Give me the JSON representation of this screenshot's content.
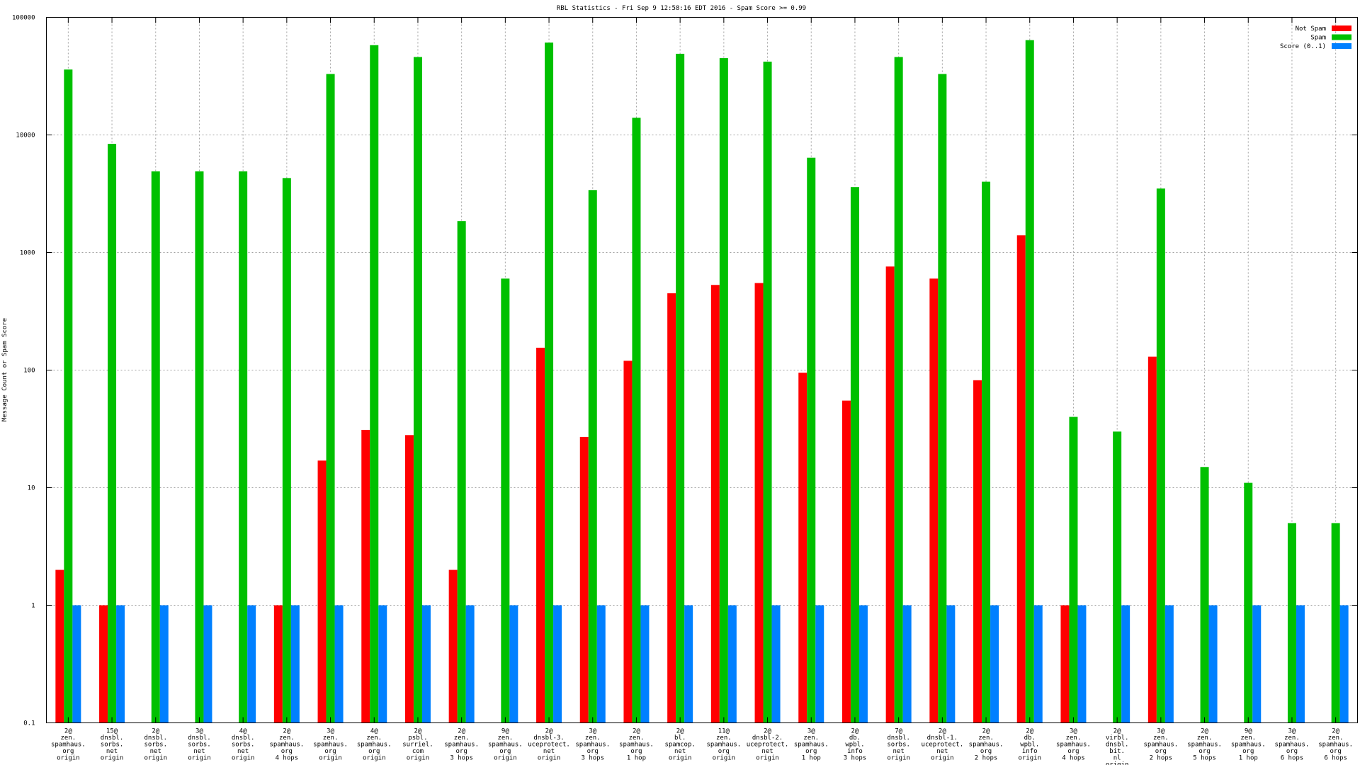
{
  "chart_data": {
    "type": "bar",
    "title": "RBL Statistics - Fri Sep  9 12:58:16 EDT 2016 - Spam Score >= 0.99",
    "ylabel": "Message Count or Spam Score",
    "xlabel": "",
    "yscale": "log",
    "ylim": [
      0.1,
      100000
    ],
    "yticks": [
      "0.1",
      "1",
      "10",
      "100",
      "1000",
      "10000",
      "100000"
    ],
    "grid": true,
    "legend_position": "top-right",
    "categories": [
      [
        "2@",
        "zen.",
        "spamhaus.",
        "org",
        "origin"
      ],
      [
        "15@",
        "dnsbl.",
        "sorbs.",
        "net",
        "origin"
      ],
      [
        "2@",
        "dnsbl.",
        "sorbs.",
        "net",
        "origin"
      ],
      [
        "3@",
        "dnsbl.",
        "sorbs.",
        "net",
        "origin"
      ],
      [
        "4@",
        "dnsbl.",
        "sorbs.",
        "net",
        "origin"
      ],
      [
        "2@",
        "zen.",
        "spamhaus.",
        "org",
        "4 hops"
      ],
      [
        "3@",
        "zen.",
        "spamhaus.",
        "org",
        "origin"
      ],
      [
        "4@",
        "zen.",
        "spamhaus.",
        "org",
        "origin"
      ],
      [
        "2@",
        "psbl.",
        "surriel.",
        "com",
        "origin"
      ],
      [
        "2@",
        "zen.",
        "spamhaus.",
        "org",
        "3 hops"
      ],
      [
        "9@",
        "zen.",
        "spamhaus.",
        "org",
        "origin"
      ],
      [
        "2@",
        "dnsbl-3.",
        "uceprotect.",
        "net",
        "origin"
      ],
      [
        "3@",
        "zen.",
        "spamhaus.",
        "org",
        "3 hops"
      ],
      [
        "2@",
        "zen.",
        "spamhaus.",
        "org",
        "1 hop"
      ],
      [
        "2@",
        "bl.",
        "spamcop.",
        "net",
        "origin"
      ],
      [
        "11@",
        "zen.",
        "spamhaus.",
        "org",
        "origin"
      ],
      [
        "2@",
        "dnsbl-2.",
        "uceprotect.",
        "net",
        "origin"
      ],
      [
        "3@",
        "zen.",
        "spamhaus.",
        "org",
        "1 hop"
      ],
      [
        "2@",
        "db.",
        "wpbl.",
        "info",
        "3 hops"
      ],
      [
        "7@",
        "dnsbl.",
        "sorbs.",
        "net",
        "origin"
      ],
      [
        "2@",
        "dnsbl-1.",
        "uceprotect.",
        "net",
        "origin"
      ],
      [
        "2@",
        "zen.",
        "spamhaus.",
        "org",
        "2 hops"
      ],
      [
        "2@",
        "db.",
        "wpbl.",
        "info",
        "origin"
      ],
      [
        "3@",
        "zen.",
        "spamhaus.",
        "org",
        "4 hops"
      ],
      [
        "2@",
        "virbl.",
        "dnsbl.",
        "bit.",
        "nl",
        "origin"
      ],
      [
        "3@",
        "zen.",
        "spamhaus.",
        "org",
        "2 hops"
      ],
      [
        "2@",
        "zen.",
        "spamhaus.",
        "org",
        "5 hops"
      ],
      [
        "9@",
        "zen.",
        "spamhaus.",
        "org",
        "1 hop"
      ],
      [
        "3@",
        "zen.",
        "spamhaus.",
        "org",
        "6 hops"
      ],
      [
        "2@",
        "zen.",
        "spamhaus.",
        "org",
        "6 hops"
      ]
    ],
    "series": [
      {
        "name": "Not Spam",
        "color": "#ff0000",
        "values": [
          2,
          1,
          null,
          null,
          null,
          1,
          17,
          31,
          28,
          2,
          null,
          155,
          27,
          120,
          450,
          530,
          550,
          95,
          55,
          760,
          600,
          82,
          1400,
          1,
          null,
          130,
          null,
          null,
          null,
          null
        ]
      },
      {
        "name": "Spam",
        "color": "#00c000",
        "values": [
          36000,
          8400,
          4900,
          4900,
          4900,
          4300,
          33000,
          58000,
          46000,
          1850,
          600,
          61000,
          3400,
          14000,
          49000,
          45000,
          42000,
          6400,
          3600,
          46000,
          33000,
          4000,
          64000,
          40,
          30,
          3500,
          15,
          11,
          5,
          5
        ]
      },
      {
        "name": "Score (0..1)",
        "color": "#0080ff",
        "values": [
          1,
          1,
          1,
          1,
          1,
          1,
          1,
          1,
          1,
          1,
          1,
          1,
          1,
          1,
          1,
          1,
          1,
          1,
          1,
          1,
          1,
          1,
          1,
          1,
          1,
          1,
          1,
          1,
          1,
          1
        ]
      }
    ]
  }
}
